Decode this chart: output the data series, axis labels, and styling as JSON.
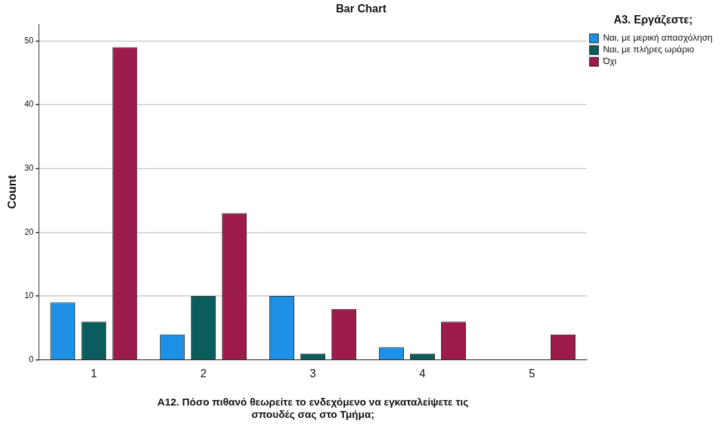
{
  "chart_data": {
    "type": "bar",
    "title": "Bar Chart",
    "xlabel": "A12. Πόσο πιθανό θεωρείτε το ενδεχόμενο να εγκαταλείψετε τις σπουδές σας στο Τμήμα;",
    "ylabel": "Count",
    "legend_title": "A3. Εργάζεστε;",
    "categories": [
      "1",
      "2",
      "3",
      "4",
      "5"
    ],
    "series": [
      {
        "name": "Ναι, με μερική απασχόληση",
        "color": "#1e90e6",
        "values": [
          9,
          4,
          10,
          2,
          0
        ]
      },
      {
        "name": "Ναι, με πλήρες ωράριο",
        "color": "#0b5c5c",
        "values": [
          6,
          10,
          1,
          1,
          0
        ]
      },
      {
        "name": "Όχι",
        "color": "#9c1a4c",
        "values": [
          49,
          23,
          8,
          6,
          4
        ]
      }
    ],
    "ylim": [
      0,
      52.6
    ],
    "yticks": [
      0,
      10,
      20,
      30,
      40,
      50
    ],
    "grid": "y",
    "legend": "top right"
  }
}
